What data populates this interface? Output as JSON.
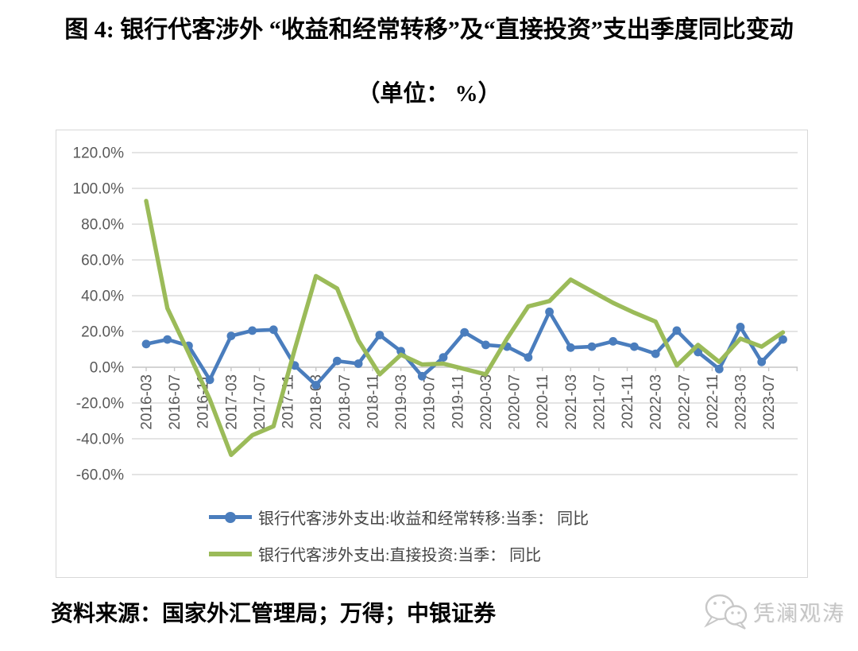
{
  "title": {
    "line1": "图 4: 银行代客涉外 “收益和经常转移”及“直接投资”支出季度同比变动",
    "line2": "（单位： %）"
  },
  "source_note": "资料来源：国家外汇管理局；万得；中银证券",
  "watermark": {
    "icon": "wechat-bubbles-logo",
    "text": "凭澜观涛"
  },
  "chart_data": {
    "type": "line",
    "x": [
      "2016-03",
      "2016-06",
      "2016-09",
      "2016-12",
      "2017-03",
      "2017-06",
      "2017-09",
      "2017-12",
      "2018-03",
      "2018-06",
      "2018-09",
      "2018-12",
      "2019-03",
      "2019-06",
      "2019-09",
      "2019-12",
      "2020-03",
      "2020-06",
      "2020-09",
      "2020-12",
      "2021-03",
      "2021-06",
      "2021-09",
      "2021-12",
      "2022-03",
      "2022-06",
      "2022-09",
      "2022-12",
      "2023-03",
      "2023-06",
      "2023-09"
    ],
    "series": [
      {
        "name": "银行代客涉外支出:收益和经常转移:当季： 同比",
        "color": "#4a7dbd",
        "marker": "circle",
        "values": [
          13,
          15.5,
          12,
          -7,
          17.5,
          20.5,
          21,
          1,
          -10,
          3.5,
          2,
          18,
          9,
          -5,
          5.5,
          19.5,
          12.5,
          11.5,
          5.5,
          31,
          11,
          11.5,
          14.5,
          11.5,
          7.5,
          20.5,
          8.5,
          -1,
          22.5,
          3,
          15.5
        ]
      },
      {
        "name": "银行代客涉外支出:直接投资:当季： 同比",
        "color": "#9bbb59",
        "marker": "none",
        "values": [
          93,
          33,
          8,
          -18,
          -49,
          -38,
          -33,
          10,
          51,
          44,
          15,
          -4,
          7,
          1.5,
          2,
          -1,
          -4,
          16,
          34,
          37,
          49,
          42.5,
          36,
          30.5,
          25.5,
          1,
          12.5,
          3,
          16,
          11.5,
          19.5
        ]
      }
    ],
    "x_tick_labels": [
      "2016-03",
      "2016-07",
      "2016-11",
      "2017-03",
      "2017-07",
      "2017-11",
      "2018-03",
      "2018-07",
      "2018-11",
      "2019-03",
      "2019-07",
      "2019-11",
      "2020-03",
      "2020-07",
      "2020-11",
      "2021-03",
      "2021-07",
      "2021-11",
      "2022-03",
      "2022-07",
      "2022-11",
      "2023-03",
      "2023-07"
    ],
    "y_ticks": [
      "120.0%",
      "100.0%",
      "80.0%",
      "60.0%",
      "40.0%",
      "20.0%",
      "0.0%",
      "-20.0%",
      "-40.0%",
      "-60.0%"
    ],
    "ylim": [
      -60,
      120
    ],
    "grid": true,
    "legend_position": "bottom-inside",
    "gridline_color": "#dcdcdc",
    "axis_color": "#c6c6c6",
    "tick_label_color": "#595959"
  }
}
